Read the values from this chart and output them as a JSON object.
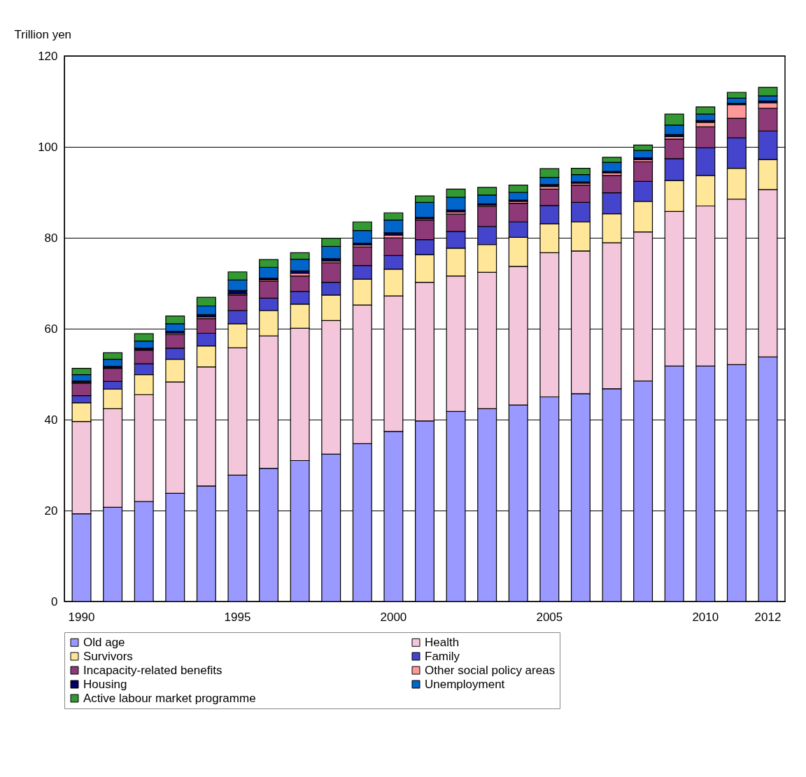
{
  "chart_data": {
    "type": "bar",
    "stacked": true,
    "ylabel": "Trillion yen",
    "categories": [
      "1990",
      null,
      null,
      null,
      null,
      "1995",
      null,
      null,
      null,
      null,
      "2000",
      null,
      null,
      null,
      null,
      "2005",
      null,
      null,
      null,
      null,
      "2010",
      null,
      "2012"
    ],
    "ylim": [
      0,
      120
    ],
    "yticks": [
      0,
      20,
      40,
      60,
      80,
      100,
      120
    ],
    "grid": "y",
    "legend": "bottom",
    "series": [
      {
        "name": "Old age",
        "color": "#9999ff",
        "values": [
          19.3,
          20.7,
          22.0,
          23.8,
          25.4,
          27.8,
          29.3,
          31.0,
          32.4,
          34.7,
          37.4,
          39.7,
          41.8,
          42.4,
          43.2,
          45.0,
          45.7,
          46.8,
          48.5,
          51.8,
          51.8,
          52.1,
          53.8
        ]
      },
      {
        "name": "Health",
        "color": "#f4c6dc",
        "values": [
          20.3,
          21.7,
          23.5,
          24.5,
          26.2,
          28.0,
          29.1,
          29.1,
          29.4,
          30.5,
          29.8,
          30.5,
          29.8,
          30.0,
          30.5,
          31.7,
          31.4,
          32.1,
          32.8,
          34.0,
          35.2,
          36.4,
          36.8
        ]
      },
      {
        "name": "Survivors",
        "color": "#ffe699",
        "values": [
          4.1,
          4.3,
          4.4,
          5.0,
          4.6,
          5.3,
          5.6,
          5.3,
          5.6,
          5.7,
          5.9,
          6.1,
          6.1,
          6.1,
          6.4,
          6.4,
          6.4,
          6.4,
          6.7,
          6.8,
          6.7,
          6.8,
          6.6
        ]
      },
      {
        "name": "Family",
        "color": "#4444cc",
        "values": [
          1.6,
          1.7,
          2.4,
          2.4,
          2.8,
          2.9,
          2.7,
          2.8,
          2.8,
          3.0,
          3.0,
          3.3,
          3.7,
          4.0,
          3.4,
          4.0,
          4.3,
          4.6,
          4.4,
          4.8,
          6.1,
          6.7,
          6.3
        ]
      },
      {
        "name": "Incapacity-related benefits",
        "color": "#8e3a78",
        "values": [
          2.7,
          2.9,
          3.0,
          3.0,
          3.2,
          3.4,
          3.7,
          3.4,
          4.3,
          4.1,
          3.9,
          4.3,
          3.8,
          4.4,
          4.1,
          3.6,
          3.8,
          3.8,
          4.3,
          4.3,
          4.6,
          4.3,
          5.0
        ]
      },
      {
        "name": "Other social policy areas",
        "color": "#ff9999",
        "values": [
          0.2,
          null,
          null,
          0.3,
          0.4,
          0.3,
          0.3,
          0.6,
          0.4,
          0.4,
          0.6,
          0.3,
          0.5,
          0.3,
          0.4,
          0.6,
          0.4,
          0.6,
          0.5,
          0.6,
          1.0,
          3.0,
          1.2
        ]
      },
      {
        "name": "Housing",
        "color": "#000066",
        "values": [
          0.3,
          0.4,
          0.4,
          0.4,
          0.5,
          0.7,
          0.4,
          0.5,
          0.5,
          0.4,
          0.5,
          0.3,
          0.4,
          0.3,
          0.3,
          0.4,
          0.3,
          0.3,
          0.4,
          0.4,
          0.4,
          0.3,
          0.4
        ]
      },
      {
        "name": "Unemployment",
        "color": "#0066cc",
        "values": [
          1.4,
          1.6,
          1.6,
          1.7,
          1.9,
          2.3,
          2.4,
          2.6,
          2.7,
          2.8,
          2.8,
          3.3,
          2.8,
          1.9,
          1.7,
          1.6,
          1.6,
          2.0,
          1.6,
          2.1,
          1.4,
          1.1,
          1.1
        ]
      },
      {
        "name": "Active labour market programme",
        "color": "#339933",
        "values": [
          1.4,
          1.4,
          1.6,
          1.7,
          1.9,
          1.8,
          1.7,
          1.4,
          1.8,
          1.9,
          1.6,
          1.4,
          1.8,
          1.7,
          1.6,
          1.9,
          1.4,
          1.1,
          1.2,
          2.4,
          1.6,
          1.3,
          1.9
        ]
      }
    ]
  }
}
